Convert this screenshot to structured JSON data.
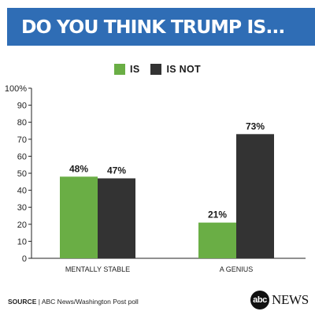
{
  "header": {
    "title": "DO YOU THINK TRUMP IS..."
  },
  "colors": {
    "banner": "#2f6db5",
    "is": "#6aae45",
    "is_not": "#333333"
  },
  "chart_data": {
    "type": "bar",
    "categories": [
      "MENTALLY STABLE",
      "A GENIUS"
    ],
    "series": [
      {
        "name": "IS",
        "values": [
          48,
          21
        ],
        "labels": [
          "48%",
          "21%"
        ]
      },
      {
        "name": "IS NOT",
        "values": [
          47,
          73
        ],
        "labels": [
          "47%",
          "73%"
        ]
      }
    ],
    "ylim": [
      0,
      100
    ],
    "yticks": [
      "0",
      "10",
      "20",
      "30",
      "40",
      "50",
      "60",
      "70",
      "80",
      "90",
      "100%"
    ],
    "legend": "top-center",
    "grid": false
  },
  "footer": {
    "source_label": "SOURCE",
    "source_text": " | ABC News/Washington Post poll",
    "logo_mark": "abc",
    "logo_text": "NEWS"
  }
}
